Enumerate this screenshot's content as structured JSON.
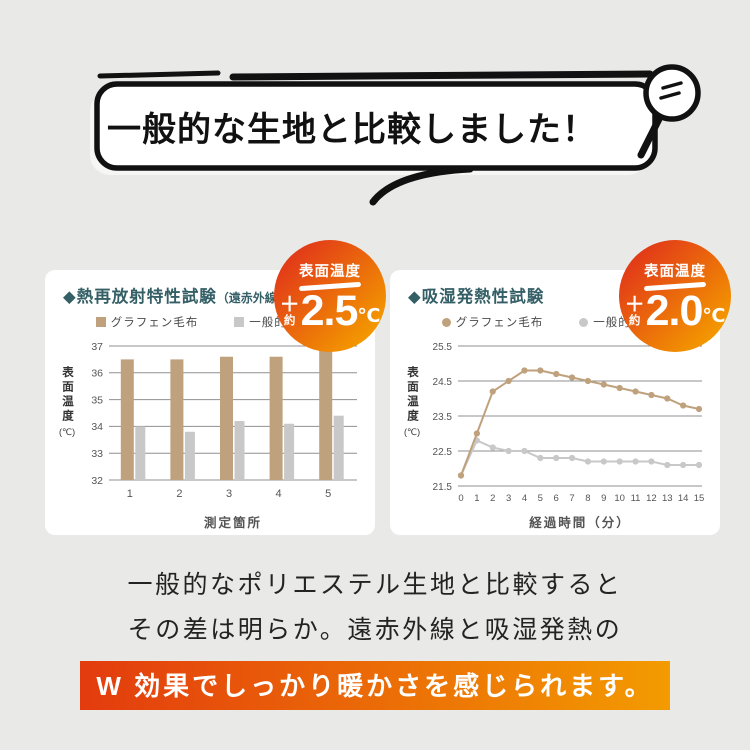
{
  "header": {
    "title": "一般的な生地と比較しました！"
  },
  "badges": [
    {
      "label": "表面温度",
      "plus": "＋",
      "approx": "約",
      "value": "2.5",
      "unit": "℃"
    },
    {
      "label": "表面温度",
      "plus": "＋",
      "approx": "約",
      "value": "2.0",
      "unit": "℃"
    }
  ],
  "chart_data": [
    {
      "type": "bar",
      "title": "◆熱再放射特性試験",
      "title_suffix": "（遠赤外線）",
      "categories": [
        "1",
        "2",
        "3",
        "4",
        "5"
      ],
      "series": [
        {
          "name": "グラフェン毛布",
          "color": "#bfa17d",
          "values": [
            36.5,
            36.5,
            36.6,
            36.6,
            36.9
          ]
        },
        {
          "name": "一般的な生地",
          "color": "#c8c8c9",
          "values": [
            34.0,
            33.8,
            34.2,
            34.1,
            34.4
          ]
        }
      ],
      "xlabel": "測定箇所",
      "ylabel": "表面温度",
      "ylabel_unit": "(℃)",
      "ylim": [
        32,
        37
      ],
      "yticks": [
        32,
        33,
        34,
        35,
        36,
        37
      ],
      "grid": true,
      "legend_position": "top"
    },
    {
      "type": "line",
      "title": "◆吸湿発熱性試験",
      "title_suffix": "",
      "x": [
        0,
        1,
        2,
        3,
        4,
        5,
        6,
        7,
        8,
        9,
        10,
        11,
        12,
        13,
        14,
        15
      ],
      "series": [
        {
          "name": "グラフェン毛布",
          "color": "#bfa17d",
          "values": [
            21.8,
            23.0,
            24.2,
            24.5,
            24.8,
            24.8,
            24.7,
            24.6,
            24.5,
            24.4,
            24.3,
            24.2,
            24.1,
            24.0,
            23.8,
            23.7
          ]
        },
        {
          "name": "一般的な生地",
          "color": "#c8c8c9",
          "values": [
            21.8,
            22.8,
            22.6,
            22.5,
            22.5,
            22.3,
            22.3,
            22.3,
            22.2,
            22.2,
            22.2,
            22.2,
            22.2,
            22.1,
            22.1,
            22.1
          ]
        }
      ],
      "xlabel": "経過時間（分）",
      "ylabel": "表面温度",
      "ylabel_unit": "(℃)",
      "ylim": [
        21.5,
        25.5
      ],
      "yticks": [
        21.5,
        22.5,
        23.5,
        24.5,
        25.5
      ],
      "grid": true,
      "legend_position": "top"
    }
  ],
  "footer": {
    "line1": "一般的なポリエステル生地と比較すると",
    "line2": "その差は明らか。遠赤外線と吸湿発熱の",
    "highlight": "W 効果でしっかり暖かさを感じられます。"
  },
  "colors": {
    "bg": "#e9e9e7",
    "panel": "#ffffff",
    "teal": "#345f66",
    "tan": "#bfa17d",
    "grayseries": "#c8c8c9",
    "grid": "#8f8f8f",
    "badge1": "#e23a18",
    "badge2": "#f39800",
    "hl1": "#e33b0e",
    "hl2": "#f39b00"
  }
}
